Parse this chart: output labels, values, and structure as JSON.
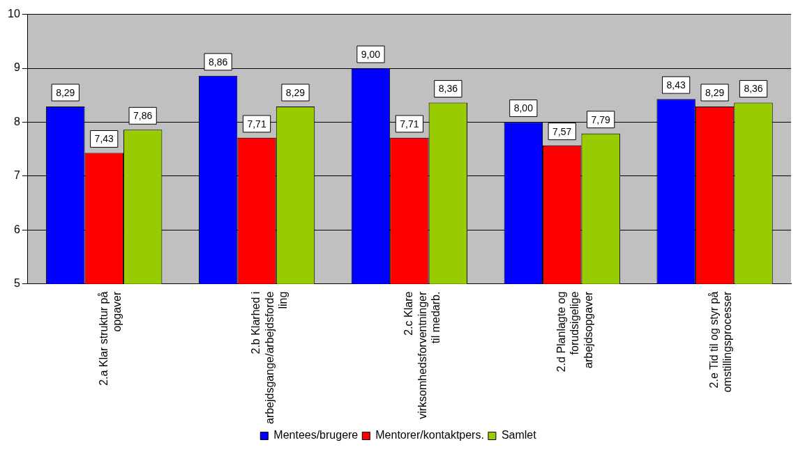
{
  "chart_data": {
    "type": "bar",
    "categories": [
      "2.a Klar struktur på\nopgaver",
      "2.b Klarhed i\narbejdsgange/arbejdsforde\nling",
      "2.c Klare\nvirksomhedsforventninger\ntil medarb.",
      "2.d Planlagte og\nforudsigelige\narbejdsopgaver",
      "2.e Tid til og styr på\nomstillingsprocesser"
    ],
    "series": [
      {
        "name": "Mentees/brugere",
        "color": "#0000ff",
        "values": [
          8.29,
          8.86,
          9.0,
          8.0,
          8.43
        ],
        "value_labels": [
          "8,29",
          "8,86",
          "9,00",
          "8,00",
          "8,43"
        ]
      },
      {
        "name": "Mentorer/kontaktpers.",
        "color": "#ff0000",
        "values": [
          7.43,
          7.71,
          7.71,
          7.57,
          8.29
        ],
        "value_labels": [
          "7,43",
          "7,71",
          "7,71",
          "7,57",
          "8,29"
        ]
      },
      {
        "name": "Samlet",
        "color": "#99cc00",
        "values": [
          7.86,
          8.29,
          8.36,
          7.79,
          8.36
        ],
        "value_labels": [
          "7,86",
          "8,29",
          "8,36",
          "7,79",
          "8,36"
        ]
      }
    ],
    "ylim": [
      5,
      10
    ],
    "yticks": [
      5,
      6,
      7,
      8,
      9,
      10
    ],
    "grid": "y",
    "legend": "bottom"
  }
}
